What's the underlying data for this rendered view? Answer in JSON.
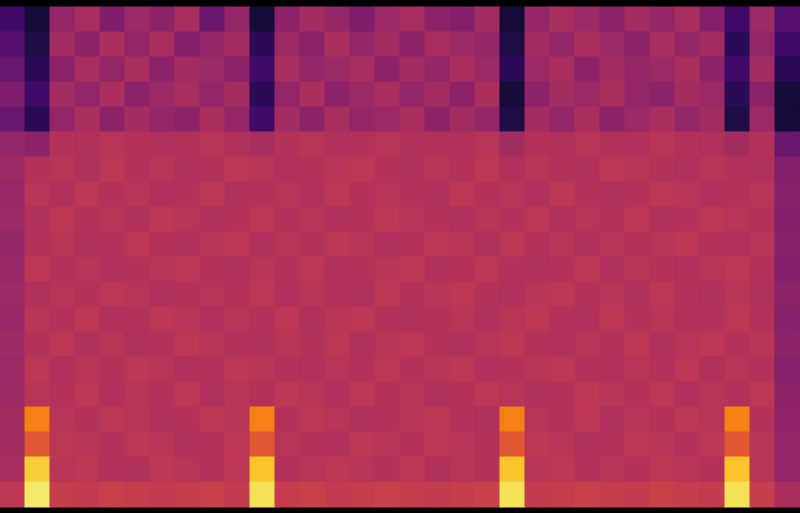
{
  "chart_data": {
    "type": "heatmap",
    "tick_labels": false,
    "color": "inferno",
    "zlim": [
      0,
      100
    ],
    "z": [
      [
        20,
        10,
        40,
        45,
        35,
        42,
        38,
        45,
        30,
        40,
        10,
        38,
        44,
        40,
        35,
        42,
        45,
        38,
        36,
        44,
        10,
        40,
        45,
        42,
        38,
        44,
        40,
        45,
        36,
        20,
        42,
        25
      ],
      [
        25,
        12,
        44,
        38,
        46,
        40,
        45,
        36,
        40,
        44,
        15,
        42,
        38,
        46,
        40,
        44,
        38,
        45,
        42,
        40,
        12,
        44,
        40,
        46,
        42,
        38,
        45,
        40,
        44,
        15,
        40,
        20
      ],
      [
        30,
        15,
        38,
        45,
        40,
        46,
        38,
        44,
        42,
        38,
        20,
        45,
        40,
        42,
        45,
        38,
        44,
        40,
        46,
        42,
        15,
        42,
        46,
        38,
        44,
        40,
        42,
        46,
        38,
        20,
        44,
        15
      ],
      [
        35,
        20,
        44,
        40,
        46,
        38,
        42,
        45,
        40,
        44,
        15,
        40,
        46,
        38,
        42,
        45,
        40,
        44,
        38,
        46,
        10,
        38,
        44,
        42,
        46,
        40,
        38,
        44,
        42,
        15,
        38,
        10
      ],
      [
        30,
        15,
        40,
        46,
        38,
        44,
        40,
        38,
        46,
        40,
        20,
        44,
        38,
        45,
        40,
        42,
        46,
        38,
        44,
        40,
        12,
        44,
        40,
        46,
        38,
        42,
        46,
        40,
        44,
        12,
        42,
        10
      ],
      [
        40,
        38,
        48,
        47,
        49,
        48,
        47,
        48,
        49,
        47,
        45,
        48,
        49,
        47,
        48,
        49,
        47,
        48,
        47,
        49,
        44,
        48,
        47,
        49,
        48,
        47,
        49,
        48,
        47,
        44,
        48,
        30
      ],
      [
        42,
        48,
        49,
        47,
        50,
        48,
        49,
        47,
        48,
        50,
        49,
        47,
        48,
        49,
        50,
        48,
        47,
        49,
        48,
        50,
        47,
        49,
        48,
        47,
        50,
        49,
        48,
        47,
        49,
        48,
        47,
        36
      ],
      [
        41,
        49,
        47,
        50,
        48,
        49,
        47,
        48,
        50,
        47,
        48,
        49,
        47,
        50,
        48,
        49,
        48,
        47,
        50,
        48,
        49,
        47,
        50,
        48,
        47,
        48,
        50,
        49,
        47,
        48,
        49,
        37
      ],
      [
        42,
        47,
        50,
        48,
        49,
        47,
        50,
        49,
        47,
        48,
        50,
        48,
        49,
        47,
        48,
        50,
        49,
        48,
        47,
        49,
        48,
        50,
        47,
        49,
        48,
        50,
        47,
        48,
        50,
        49,
        48,
        36
      ],
      [
        40,
        48,
        49,
        47,
        48,
        50,
        48,
        47,
        49,
        50,
        47,
        49,
        48,
        50,
        49,
        47,
        48,
        50,
        49,
        47,
        50,
        48,
        49,
        47,
        49,
        48,
        49,
        50,
        48,
        47,
        49,
        37
      ],
      [
        41,
        50,
        48,
        49,
        47,
        48,
        49,
        50,
        48,
        47,
        49,
        48,
        50,
        47,
        48,
        49,
        50,
        47,
        48,
        50,
        48,
        47,
        48,
        50,
        47,
        49,
        48,
        47,
        49,
        50,
        48,
        36
      ],
      [
        42,
        47,
        49,
        48,
        50,
        49,
        47,
        48,
        49,
        48,
        50,
        47,
        49,
        48,
        47,
        50,
        48,
        49,
        50,
        48,
        47,
        49,
        50,
        48,
        49,
        47,
        50,
        48,
        47,
        49,
        47,
        38
      ],
      [
        41,
        49,
        48,
        50,
        47,
        48,
        50,
        49,
        47,
        49,
        48,
        50,
        47,
        49,
        50,
        48,
        47,
        48,
        49,
        47,
        49,
        50,
        48,
        47,
        50,
        48,
        49,
        47,
        48,
        50,
        48,
        37
      ],
      [
        43,
        48,
        50,
        47,
        49,
        47,
        48,
        50,
        49,
        48,
        47,
        49,
        48,
        50,
        47,
        49,
        50,
        48,
        47,
        49,
        50,
        48,
        47,
        49,
        48,
        50,
        47,
        49,
        50,
        48,
        49,
        38
      ],
      [
        42,
        50,
        47,
        49,
        48,
        50,
        49,
        47,
        48,
        50,
        49,
        48,
        47,
        49,
        48,
        50,
        48,
        49,
        50,
        47,
        48,
        49,
        50,
        48,
        47,
        49,
        48,
        50,
        47,
        49,
        48,
        37
      ],
      [
        43,
        49,
        48,
        50,
        47,
        49,
        48,
        50,
        47,
        49,
        48,
        50,
        49,
        47,
        50,
        48,
        49,
        47,
        48,
        50,
        49,
        47,
        48,
        50,
        49,
        48,
        50,
        47,
        49,
        48,
        50,
        38
      ],
      [
        44,
        72,
        49,
        48,
        50,
        49,
        47,
        48,
        50,
        49,
        72,
        48,
        50,
        49,
        47,
        48,
        49,
        50,
        48,
        47,
        72,
        49,
        48,
        50,
        47,
        49,
        48,
        50,
        49,
        72,
        48,
        39
      ],
      [
        44,
        62,
        50,
        49,
        48,
        50,
        49,
        47,
        48,
        50,
        62,
        49,
        48,
        47,
        50,
        49,
        48,
        50,
        49,
        48,
        62,
        50,
        49,
        47,
        48,
        50,
        49,
        48,
        50,
        62,
        49,
        40
      ],
      [
        45,
        88,
        49,
        50,
        48,
        47,
        50,
        49,
        48,
        50,
        86,
        48,
        49,
        50,
        49,
        48,
        50,
        47,
        49,
        48,
        86,
        49,
        50,
        48,
        49,
        48,
        50,
        49,
        48,
        86,
        49,
        40
      ],
      [
        50,
        94,
        53,
        52,
        54,
        53,
        52,
        53,
        54,
        52,
        92,
        53,
        54,
        52,
        53,
        54,
        53,
        52,
        53,
        54,
        92,
        52,
        53,
        54,
        53,
        52,
        54,
        53,
        52,
        92,
        53,
        46
      ]
    ]
  }
}
